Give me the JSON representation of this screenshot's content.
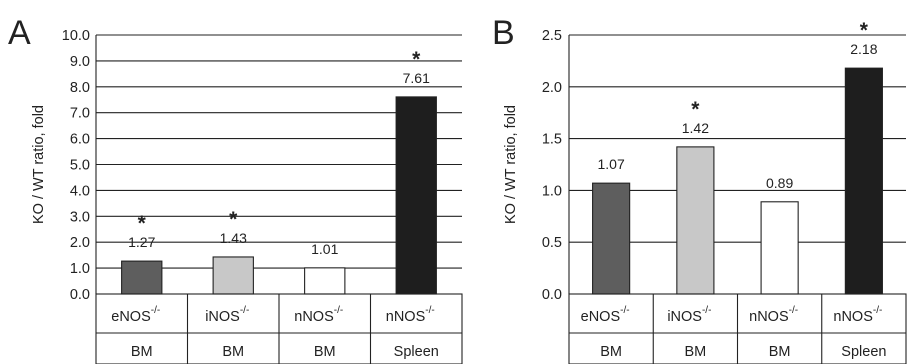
{
  "chart_data": [
    {
      "type": "bar",
      "panel": "A",
      "ylabel": "KO / WT ratio, fold",
      "ylim": [
        0,
        10
      ],
      "yticks": [
        "0.0",
        "1.0",
        "2.0",
        "3.0",
        "4.0",
        "5.0",
        "6.0",
        "7.0",
        "8.0",
        "9.0",
        "10.0"
      ],
      "grid": true,
      "categories": [
        {
          "gene": "eNOS",
          "sup": "-/-",
          "tissue": "BM"
        },
        {
          "gene": "iNOS",
          "sup": "-/-",
          "tissue": "BM"
        },
        {
          "gene": "nNOS",
          "sup": "-/-",
          "tissue": "BM"
        },
        {
          "gene": "nNOS",
          "sup": "-/-",
          "tissue": "Spleen"
        }
      ],
      "values": [
        1.27,
        1.43,
        1.01,
        7.61
      ],
      "value_labels": [
        "1.27",
        "1.43",
        "1.01",
        "7.61"
      ],
      "significance": [
        "*",
        "*",
        "",
        "*"
      ],
      "colors": [
        "#5e5e5e",
        "#c8c8c8",
        "#ffffff",
        "#1e1e1e"
      ]
    },
    {
      "type": "bar",
      "panel": "B",
      "ylabel": "KO / WT ratio, fold",
      "ylim": [
        0,
        2.5
      ],
      "yticks": [
        "0.0",
        "0.5",
        "1.0",
        "1.5",
        "2.0",
        "2.5"
      ],
      "grid": true,
      "categories": [
        {
          "gene": "eNOS",
          "sup": "-/-",
          "tissue": "BM"
        },
        {
          "gene": "iNOS",
          "sup": "-/-",
          "tissue": "BM"
        },
        {
          "gene": "nNOS",
          "sup": "-/-",
          "tissue": "BM"
        },
        {
          "gene": "nNOS",
          "sup": "-/-",
          "tissue": "Spleen"
        }
      ],
      "values": [
        1.07,
        1.42,
        0.89,
        2.18
      ],
      "value_labels": [
        "1.07",
        "1.42",
        "0.89",
        "2.18"
      ],
      "significance": [
        "",
        "*",
        "",
        "*"
      ],
      "colors": [
        "#5e5e5e",
        "#c8c8c8",
        "#ffffff",
        "#1e1e1e"
      ]
    }
  ]
}
